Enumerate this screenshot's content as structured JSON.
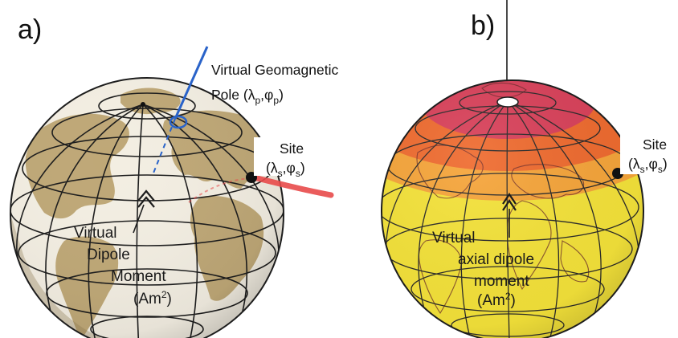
{
  "panels": [
    {
      "label": "a)",
      "globe_palette": {
        "ocean": "#f3eee2",
        "land": "#bfa877",
        "shadow": "#8f7b54"
      },
      "vgp_label": [
        "Virtual Geomagnetic",
        "Pole (",
        "λ",
        "p",
        ",",
        "φ",
        "p",
        ")"
      ],
      "site_label": [
        "Site",
        "(",
        "λ",
        "s",
        ",",
        "φ",
        "s",
        ")"
      ],
      "moment_label": [
        "Virtual",
        "Dipole",
        "Moment",
        "(Am",
        "2",
        ")"
      ],
      "pole_axis_color": "#2a63c9",
      "field_color": "#e84a4a"
    },
    {
      "label": "b)",
      "globe_palette": {
        "band_polar": "#d9415a",
        "band_mid": "#ef6b2f",
        "band_low": "#f6a53a",
        "band_eq": "#f5e33a"
      },
      "site_label": [
        "Site",
        "(",
        "λ",
        "s",
        ",",
        "φ",
        "s",
        ")"
      ],
      "moment_label": [
        "Virtual",
        "axial dipole",
        "moment",
        "(Am",
        "2",
        ")"
      ]
    }
  ]
}
